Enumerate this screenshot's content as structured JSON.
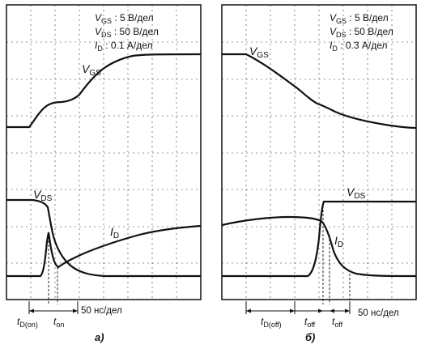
{
  "panel_a": {
    "scale_vgs": {
      "sym": "V",
      "sub": "GS",
      "text": " : 5 В/дел"
    },
    "scale_vds": {
      "sym": "V",
      "sub": "DS",
      "text": " : 50 В/дел"
    },
    "scale_id": {
      "sym": "I",
      "sub": "D",
      "text": " : 0.1 А/дел"
    },
    "label_vgs": {
      "sym": "V",
      "sub": "GS"
    },
    "label_vds": {
      "sym": "V",
      "sub": "DS"
    },
    "label_id": {
      "sym": "I",
      "sub": "D"
    },
    "time_td_on": {
      "sym": "t",
      "sub": "D(on)"
    },
    "time_ton": {
      "sym": "t",
      "sub": "on"
    },
    "time_scale": "50 нс/дел",
    "caption": "а)"
  },
  "panel_b": {
    "scale_vgs": {
      "sym": "V",
      "sub": "GS",
      "text": " : 5 В/дел"
    },
    "scale_vds": {
      "sym": "V",
      "sub": "DS",
      "text": " : 50 В/дел"
    },
    "scale_id": {
      "sym": "I",
      "sub": "D",
      "text": " : 0.3 А/дел"
    },
    "label_vgs": {
      "sym": "V",
      "sub": "GS"
    },
    "label_vds": {
      "sym": "V",
      "sub": "DS"
    },
    "label_id": {
      "sym": "I",
      "sub": "D"
    },
    "time_td_off": {
      "sym": "t",
      "sub": "D(off)"
    },
    "time_toff_1": {
      "sym": "t",
      "sub": "off"
    },
    "time_toff_2": {
      "sym": "t",
      "sub": "off"
    },
    "time_scale": "50 нс/дел",
    "caption": "б)"
  }
}
